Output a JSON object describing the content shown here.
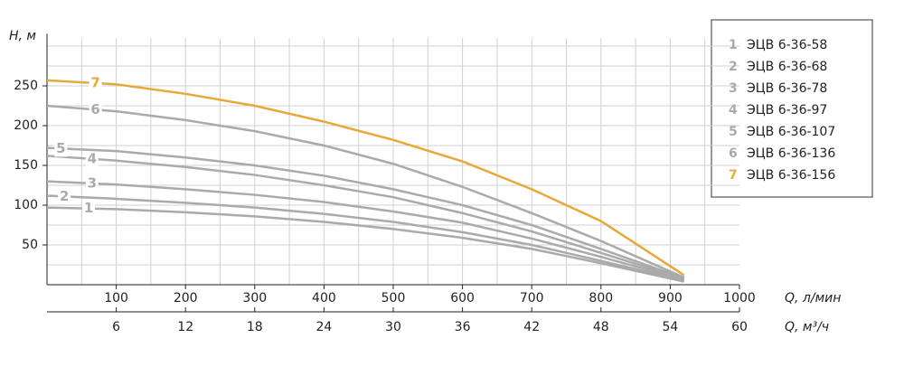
{
  "chart_data": {
    "type": "line",
    "ylabel": "H, м",
    "xlabel": "Q, л/мин",
    "x2label": "Q, м³/ч",
    "x": [
      0,
      100,
      200,
      300,
      400,
      500,
      600,
      700,
      800,
      920
    ],
    "xlim": [
      0,
      1000
    ],
    "xticks": [
      100,
      200,
      300,
      400,
      500,
      600,
      700,
      800,
      900,
      1000
    ],
    "x2lim": [
      0,
      60
    ],
    "x2ticks": [
      6,
      12,
      18,
      24,
      30,
      36,
      42,
      48,
      54,
      60
    ],
    "ylim": [
      0,
      310
    ],
    "yticks": [
      50,
      100,
      150,
      200,
      250
    ],
    "xgrid": [
      50,
      100,
      150,
      200,
      250,
      300,
      350,
      400,
      450,
      500,
      550,
      600,
      650,
      700,
      750,
      800,
      850,
      900,
      950
    ],
    "ygrid": [
      25,
      50,
      75,
      100,
      125,
      150,
      175,
      200,
      225,
      250,
      275,
      300
    ],
    "grid": true,
    "series": [
      {
        "label": "1",
        "name": "ЭЦВ 6-36-58",
        "color": "#aaaaaa",
        "values": [
          97,
          95,
          91,
          86,
          79,
          70,
          59,
          45,
          27,
          4
        ]
      },
      {
        "label": "2",
        "name": "ЭЦВ 6-36-68",
        "color": "#aaaaaa",
        "values": [
          112,
          108,
          103,
          97,
          89,
          79,
          66,
          50,
          30,
          5
        ]
      },
      {
        "label": "3",
        "name": "ЭЦВ 6-36-78",
        "color": "#aaaaaa",
        "values": [
          130,
          126,
          120,
          113,
          104,
          92,
          78,
          58,
          35,
          6
        ]
      },
      {
        "label": "4",
        "name": "ЭЦВ 6-36-97",
        "color": "#aaaaaa",
        "values": [
          162,
          156,
          148,
          138,
          125,
          110,
          90,
          67,
          40,
          7
        ]
      },
      {
        "label": "5",
        "name": "ЭЦВ 6-36-107",
        "color": "#aaaaaa",
        "values": [
          172,
          168,
          160,
          150,
          137,
          120,
          100,
          75,
          45,
          8
        ]
      },
      {
        "label": "6",
        "name": "ЭЦВ 6-36-136",
        "color": "#aaaaaa",
        "values": [
          225,
          218,
          207,
          193,
          175,
          152,
          123,
          90,
          55,
          9
        ]
      },
      {
        "label": "7",
        "name": "ЭЦВ 6-36-156",
        "color": "#e8a838",
        "values": [
          257,
          252,
          240,
          225,
          205,
          182,
          155,
          120,
          80,
          12
        ]
      }
    ]
  }
}
